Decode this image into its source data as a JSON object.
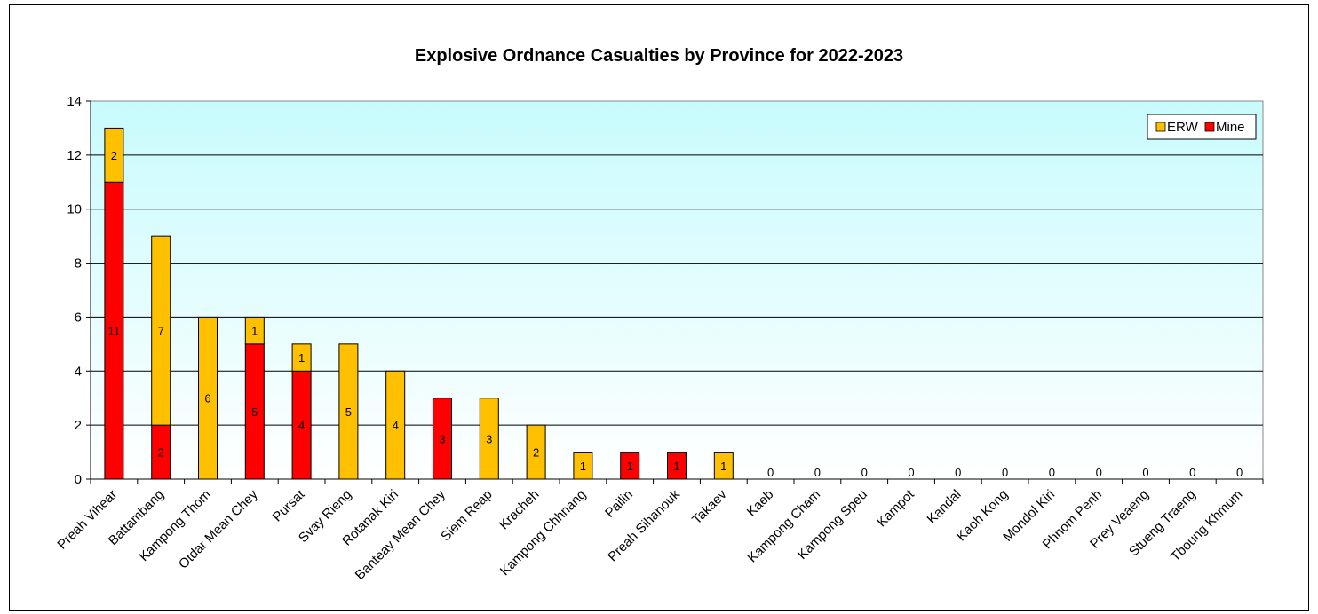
{
  "chart_data": {
    "type": "bar",
    "stacked": true,
    "title": "Explosive Ordnance Casualties by Province for 2022-2023",
    "xlabel": "",
    "ylabel": "",
    "ylim": [
      0,
      14
    ],
    "yticks": [
      0,
      2,
      4,
      6,
      8,
      10,
      12,
      14
    ],
    "grid": true,
    "legend_position": "top-right",
    "categories": [
      "Preah Vihear",
      "Battambang",
      "Kampong Thom",
      "Otdar Mean Chey",
      "Pursat",
      "Svay Rieng",
      "Rotanak Kiri",
      "Banteay Mean Chey",
      "Siem Reap",
      "Kracheh",
      "Kampong Chhnang",
      "Pailin",
      "Preah Sihanouk",
      "Takaev",
      "Kaeb",
      "Kampong Cham",
      "Kampong Speu",
      "Kampot",
      "Kandal",
      "Kaoh Kong",
      "Mondol Kiri",
      "Phnom Penh",
      "Prey Veaeng",
      "Stueng Traeng",
      "Tboung Khmum"
    ],
    "series": [
      {
        "name": "Mine",
        "color": "#ff0000",
        "values": [
          11,
          2,
          0,
          5,
          4,
          0,
          0,
          3,
          0,
          0,
          0,
          1,
          1,
          0,
          0,
          0,
          0,
          0,
          0,
          0,
          0,
          0,
          0,
          0,
          0
        ]
      },
      {
        "name": "ERW",
        "color": "#ffc000",
        "values": [
          2,
          7,
          6,
          1,
          1,
          5,
          4,
          0,
          3,
          2,
          1,
          0,
          0,
          1,
          0,
          0,
          0,
          0,
          0,
          0,
          0,
          0,
          0,
          0,
          0
        ]
      }
    ],
    "colors": {
      "plot_background": "#ccffff",
      "gridline": "#000000"
    }
  }
}
